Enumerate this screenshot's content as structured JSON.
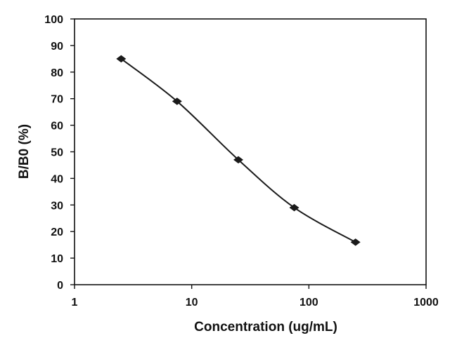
{
  "chart_data": {
    "type": "line",
    "title": "",
    "xlabel": "Concentration (ug/mL)",
    "ylabel": "B/B0 (%)",
    "x_scale": "log",
    "xlim": [
      1,
      1000
    ],
    "ylim": [
      0,
      100
    ],
    "x_ticks": [
      "1",
      "10",
      "100",
      "1000"
    ],
    "y_ticks": [
      "0",
      "10",
      "20",
      "30",
      "40",
      "50",
      "60",
      "70",
      "80",
      "90",
      "100"
    ],
    "grid": false,
    "legend": "none",
    "series": [
      {
        "marker": "diamond",
        "smooth": true,
        "color": "#1a1a1a",
        "x": [
          2.5,
          7.5,
          25,
          75,
          250
        ],
        "y": [
          85,
          69,
          47,
          29,
          16
        ]
      }
    ]
  }
}
